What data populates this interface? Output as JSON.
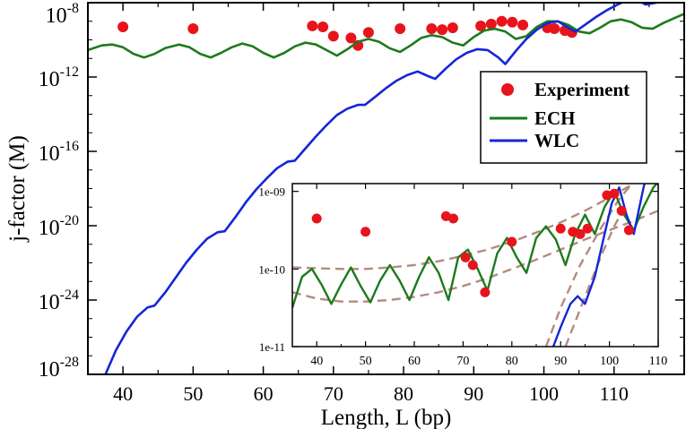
{
  "chart_data": {
    "type": "line",
    "main": {
      "xlabel": "Length, L (bp)",
      "ylabel": "j-factor (M)",
      "xlim": [
        35,
        120
      ],
      "ylim_log10": [
        -28,
        -8
      ],
      "x_ticks": [
        40,
        50,
        60,
        70,
        80,
        90,
        100,
        110
      ],
      "y_ticks": [
        {
          "exp": -8,
          "base": "10",
          "sup": "-8"
        },
        {
          "exp": -12,
          "base": "10",
          "sup": "-12"
        },
        {
          "exp": -16,
          "base": "10",
          "sup": "-16"
        },
        {
          "exp": -20,
          "base": "10",
          "sup": "-20"
        },
        {
          "exp": -24,
          "base": "10",
          "sup": "-24"
        },
        {
          "exp": -28,
          "base": "10",
          "sup": "-28"
        }
      ],
      "legend": {
        "position": "top-right",
        "entries": [
          {
            "label": "Experiment",
            "kind": "marker",
            "color": "#e8141b"
          },
          {
            "label": "ECH",
            "kind": "line",
            "color": "#1d7a1d"
          },
          {
            "label": "WLC",
            "kind": "line",
            "color": "#1426d6"
          }
        ]
      },
      "series": [
        {
          "name": "Experiment",
          "kind": "scatter",
          "color": "#e8141b",
          "x": [
            40,
            50,
            67,
            68.5,
            70,
            72.5,
            73.5,
            75,
            79.5,
            84,
            85.5,
            87,
            91,
            92.5,
            94,
            95.5,
            97,
            100.5,
            101.5,
            103,
            104
          ],
          "log10y": [
            -9.3,
            -9.4,
            -9.25,
            -9.3,
            -9.8,
            -9.9,
            -10.3,
            -9.6,
            -9.4,
            -9.4,
            -9.45,
            -9.35,
            -9.25,
            -9.15,
            -9.0,
            -9.05,
            -9.2,
            -9.35,
            -9.4,
            -9.5,
            -9.6
          ]
        },
        {
          "name": "ECH",
          "kind": "line",
          "color": "#1d7a1d",
          "x": [
            35,
            37,
            38.5,
            40,
            41.5,
            43,
            44.5,
            46,
            48,
            49.5,
            51,
            52.5,
            54,
            55.5,
            57,
            58.5,
            60,
            61.5,
            63,
            64.5,
            66,
            67.5,
            69,
            70.5,
            72,
            73.5,
            75,
            76.5,
            78,
            79.5,
            81,
            82.5,
            84,
            85.5,
            87,
            88.5,
            90,
            91.5,
            93,
            94.5,
            96,
            97.5,
            99,
            100.5,
            102,
            103.5,
            105,
            106.5,
            108,
            109.5,
            111,
            112.5,
            114,
            115.5,
            117,
            118.5,
            120
          ],
          "log10y": [
            -10.55,
            -10.3,
            -10.25,
            -10.4,
            -10.75,
            -10.95,
            -10.75,
            -10.45,
            -10.25,
            -10.4,
            -10.75,
            -10.95,
            -10.7,
            -10.4,
            -10.2,
            -10.35,
            -10.7,
            -10.95,
            -10.7,
            -10.35,
            -10.15,
            -10.25,
            -10.55,
            -10.85,
            -10.5,
            -10.1,
            -9.95,
            -10.1,
            -10.45,
            -10.65,
            -10.3,
            -9.9,
            -9.75,
            -9.85,
            -10.15,
            -10.3,
            -9.85,
            -9.5,
            -9.4,
            -9.55,
            -9.95,
            -9.8,
            -9.3,
            -9.0,
            -9.0,
            -9.2,
            -9.55,
            -9.65,
            -9.35,
            -9.0,
            -8.9,
            -9.05,
            -9.35,
            -9.4,
            -9.1,
            -8.85,
            -8.6
          ]
        },
        {
          "name": "WLC",
          "kind": "line",
          "color": "#1426d6",
          "x": [
            37.5,
            39,
            40.5,
            42,
            43.5,
            44.5,
            46,
            47.5,
            49,
            50.5,
            52,
            53.5,
            54.5,
            56,
            57.5,
            59,
            60.5,
            62,
            63.5,
            64.5,
            66,
            67.5,
            69,
            70.5,
            72,
            73.5,
            74.5,
            76,
            77.5,
            79,
            80.5,
            82,
            83.5,
            84.5,
            86,
            87.5,
            89,
            90.5,
            92,
            93.5,
            94.5,
            96,
            97.5,
            99,
            100.5,
            102,
            103.5,
            104.5,
            106,
            107.5,
            109,
            110.5,
            112,
            113.5,
            114.5,
            116,
            118,
            120
          ],
          "log10y": [
            -28.0,
            -26.7,
            -25.7,
            -24.9,
            -24.4,
            -24.3,
            -23.6,
            -22.8,
            -22.0,
            -21.3,
            -20.7,
            -20.35,
            -20.3,
            -19.55,
            -18.75,
            -18.05,
            -17.45,
            -16.9,
            -16.55,
            -16.5,
            -15.85,
            -15.2,
            -14.6,
            -14.05,
            -13.7,
            -13.5,
            -13.5,
            -13.05,
            -12.6,
            -12.2,
            -11.9,
            -11.7,
            -11.95,
            -12.1,
            -11.55,
            -11.05,
            -10.7,
            -10.5,
            -10.55,
            -10.95,
            -11.3,
            -10.6,
            -9.95,
            -9.45,
            -9.1,
            -9.0,
            -9.35,
            -9.55,
            -9.15,
            -8.75,
            -8.4,
            -8.1,
            -7.85,
            -7.9,
            -8.1,
            -8.0,
            -7.7,
            -7.4
          ]
        }
      ]
    },
    "inset": {
      "xlim": [
        35,
        110
      ],
      "ylim_log10": [
        -11,
        -8.9
      ],
      "x_ticks": [
        40,
        50,
        60,
        70,
        80,
        90,
        100,
        110
      ],
      "y_ticks": [
        {
          "exp": -9,
          "label": "1e-09"
        },
        {
          "exp": -10,
          "label": "1e-10"
        },
        {
          "exp": -11,
          "label": "1e-11"
        }
      ],
      "series": [
        {
          "name": "Experiment (inset)",
          "kind": "scatter",
          "color": "#e8141b",
          "x": [
            40,
            50,
            66.5,
            68,
            70.5,
            72,
            74.5,
            80,
            90,
            92.5,
            94,
            95.5,
            99.5,
            101,
            102.5,
            104
          ],
          "log10y": [
            -9.35,
            -9.52,
            -9.32,
            -9.35,
            -9.85,
            -9.95,
            -10.3,
            -9.65,
            -9.48,
            -9.52,
            -9.55,
            -9.48,
            -9.05,
            -9.03,
            -9.25,
            -9.5
          ]
        },
        {
          "name": "ECH (inset)",
          "kind": "line",
          "color": "#1d7a1d",
          "x": [
            35,
            37,
            39,
            41,
            43,
            45,
            47,
            49,
            51,
            53,
            55,
            57,
            59,
            61,
            63,
            65,
            67,
            69,
            71,
            73,
            75,
            77,
            79,
            81,
            83,
            85,
            87,
            89,
            91,
            93,
            95,
            97,
            99,
            101,
            103,
            105,
            107,
            109,
            110
          ],
          "log10y": [
            -10.5,
            -10.1,
            -10.0,
            -10.2,
            -10.45,
            -10.2,
            -9.98,
            -10.22,
            -10.43,
            -10.15,
            -9.95,
            -10.15,
            -10.4,
            -10.1,
            -9.85,
            -10.05,
            -10.4,
            -9.85,
            -9.75,
            -10.0,
            -10.28,
            -9.8,
            -9.6,
            -9.85,
            -10.05,
            -9.6,
            -9.45,
            -9.62,
            -9.95,
            -9.55,
            -9.3,
            -9.55,
            -9.2,
            -9.0,
            -9.3,
            -9.5,
            -9.2,
            -8.95,
            -8.88
          ]
        },
        {
          "name": "WLC (inset)",
          "kind": "line",
          "color": "#1426d6",
          "x": [
            88.5,
            90,
            92,
            93.5,
            95,
            97,
            99,
            100.5,
            102,
            103.5,
            105,
            106,
            107,
            108,
            109,
            110
          ],
          "log10y": [
            -11.0,
            -10.75,
            -10.45,
            -10.35,
            -10.45,
            -10.1,
            -9.55,
            -9.15,
            -8.95,
            -9.3,
            -9.55,
            -9.25,
            -8.95,
            -8.7,
            -8.5,
            -8.3
          ]
        },
        {
          "name": "Envelope upper",
          "kind": "dashed",
          "color": "#b58a82",
          "x": [
            35,
            40,
            45,
            50,
            55,
            60,
            65,
            70,
            75,
            80,
            85,
            90,
            95,
            100,
            105,
            110
          ],
          "log10y": [
            -9.98,
            -9.99,
            -10.0,
            -10.0,
            -9.98,
            -9.95,
            -9.9,
            -9.83,
            -9.75,
            -9.65,
            -9.53,
            -9.4,
            -9.25,
            -9.08,
            -8.9,
            -8.7
          ]
        },
        {
          "name": "Envelope lower",
          "kind": "dashed",
          "color": "#b58a82",
          "x": [
            35,
            40,
            45,
            50,
            55,
            60,
            65,
            70,
            75,
            80,
            85,
            90,
            95,
            100,
            105,
            110
          ],
          "log10y": [
            -10.3,
            -10.38,
            -10.42,
            -10.42,
            -10.4,
            -10.36,
            -10.3,
            -10.22,
            -10.12,
            -10.0,
            -9.88,
            -9.75,
            -9.62,
            -9.5,
            -9.38,
            -9.25
          ]
        },
        {
          "name": "Steep dashed 1",
          "kind": "dashed",
          "color": "#b58a82",
          "x": [
            87,
            90,
            94,
            98,
            102,
            106,
            110
          ],
          "log10y": [
            -11.0,
            -10.5,
            -9.95,
            -9.5,
            -9.1,
            -8.8,
            -8.55
          ]
        },
        {
          "name": "Steep dashed 2",
          "kind": "dashed",
          "color": "#b58a82",
          "x": [
            91,
            93.5,
            96,
            98.5,
            101,
            103.5
          ],
          "log10y": [
            -11.0,
            -10.6,
            -10.2,
            -9.8,
            -9.45,
            -9.15
          ]
        }
      ]
    }
  }
}
